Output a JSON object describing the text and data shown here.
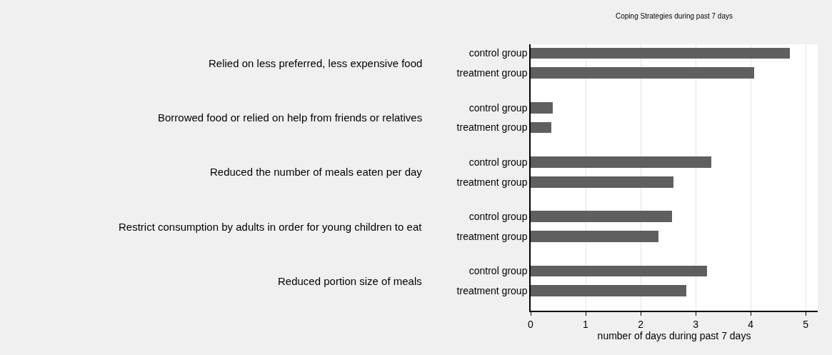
{
  "chart_data": {
    "type": "bar",
    "orientation": "horizontal",
    "title": "Coping Strategies during past 7 days",
    "xlabel": "number of days during past 7 days",
    "categories": [
      "control group",
      "treatment group",
      "control group",
      "treatment group",
      "control group",
      "treatment group",
      "control group",
      "treatment group",
      "control group",
      "treatment group"
    ],
    "values": [
      4.72,
      4.06,
      0.4,
      0.38,
      3.29,
      2.6,
      2.57,
      2.33,
      3.21,
      2.83
    ],
    "color": "#5f5f5f",
    "annotations": [
      "Relied on less preferred, less expensive food",
      "Borrowed food or relied on help from friends or relatives",
      "Reduced the number of meals eaten per day",
      "Restrict consumption by adults in order for young children to eat",
      "Reduced portion size of meals"
    ],
    "xlim": [
      0,
      5.22
    ],
    "xticks": [
      0,
      1,
      2,
      3,
      4,
      5
    ],
    "grid": "x"
  }
}
